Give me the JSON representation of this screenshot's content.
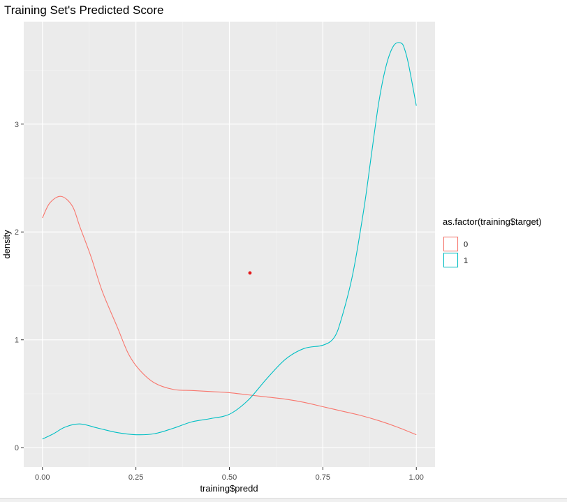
{
  "chart_data": {
    "type": "line",
    "title": "Training Set's Predicted Score",
    "xlabel": "training$predd",
    "ylabel": "density",
    "xlim": [
      -0.05,
      1.05
    ],
    "ylim": [
      -0.18,
      3.95
    ],
    "x_ticks": [
      0,
      0.25,
      0.5,
      0.75,
      1
    ],
    "x_tick_labels": [
      "0.00",
      "0.25",
      "0.50",
      "0.75",
      "1.00"
    ],
    "y_ticks": [
      0,
      1,
      2,
      3
    ],
    "y_tick_labels": [
      "0",
      "1",
      "2",
      "3"
    ],
    "grid": true,
    "legend": {
      "title": "as.factor(training$target)",
      "placement": "right"
    },
    "series": [
      {
        "name": "0",
        "color": "#F8766D",
        "x": [
          0,
          0.02,
          0.05,
          0.08,
          0.1,
          0.13,
          0.16,
          0.2,
          0.23,
          0.26,
          0.3,
          0.35,
          0.4,
          0.45,
          0.5,
          0.55,
          0.6,
          0.65,
          0.7,
          0.75,
          0.8,
          0.85,
          0.9,
          0.95,
          1.0
        ],
        "y": [
          2.13,
          2.27,
          2.33,
          2.24,
          2.05,
          1.77,
          1.45,
          1.12,
          0.87,
          0.72,
          0.6,
          0.54,
          0.53,
          0.52,
          0.51,
          0.49,
          0.47,
          0.45,
          0.42,
          0.38,
          0.34,
          0.3,
          0.25,
          0.19,
          0.12
        ]
      },
      {
        "name": "1",
        "color": "#00BFC4",
        "x": [
          0,
          0.03,
          0.06,
          0.1,
          0.15,
          0.2,
          0.25,
          0.3,
          0.35,
          0.4,
          0.45,
          0.5,
          0.55,
          0.6,
          0.65,
          0.7,
          0.75,
          0.78,
          0.8,
          0.83,
          0.86,
          0.88,
          0.9,
          0.92,
          0.94,
          0.96,
          0.97,
          0.98,
          1.0
        ],
        "y": [
          0.08,
          0.13,
          0.19,
          0.22,
          0.18,
          0.14,
          0.12,
          0.13,
          0.18,
          0.24,
          0.27,
          0.31,
          0.44,
          0.64,
          0.82,
          0.92,
          0.95,
          1.02,
          1.2,
          1.61,
          2.22,
          2.72,
          3.21,
          3.55,
          3.73,
          3.75,
          3.68,
          3.54,
          3.17
        ]
      }
    ],
    "annotations": [
      {
        "type": "point",
        "x": 0.555,
        "y": 1.62,
        "color": "#E41A1C"
      }
    ]
  }
}
